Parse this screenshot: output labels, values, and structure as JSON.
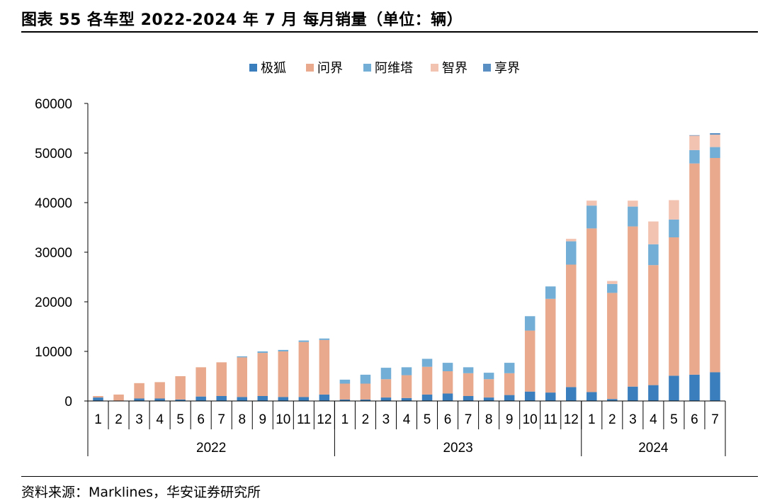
{
  "header": {
    "title": "图表 55 各车型 2022-2024 年 7 月  每月销量（单位：辆）"
  },
  "footer": {
    "source": "资料来源：Marklines，华安证券研究所"
  },
  "colors": {
    "极狐": "#3a7ebd",
    "问界": "#e8a98c",
    "阿维塔": "#72aed6",
    "智界": "#f3c3b1",
    "享界": "#5a8fc4",
    "axis": "#000000"
  },
  "chart_data": {
    "type": "bar",
    "stacked": true,
    "title": "",
    "xlabel": "",
    "ylabel": "",
    "ylim": [
      0,
      60000
    ],
    "yticks": [
      0,
      10000,
      20000,
      30000,
      40000,
      50000,
      60000
    ],
    "ytick_labels": [
      "0",
      "10000",
      "20000",
      "30000",
      "40000",
      "50000",
      "60000"
    ],
    "legend_position": "top-center",
    "grid": false,
    "categories": [
      "1",
      "2",
      "3",
      "4",
      "5",
      "6",
      "7",
      "8",
      "9",
      "10",
      "11",
      "12",
      "1",
      "2",
      "3",
      "4",
      "5",
      "6",
      "7",
      "8",
      "9",
      "10",
      "11",
      "12",
      "1",
      "2",
      "3",
      "4",
      "5",
      "6",
      "7"
    ],
    "groups": [
      {
        "label": "2022",
        "count": 12
      },
      {
        "label": "2023",
        "count": 12
      },
      {
        "label": "2024",
        "count": 7
      }
    ],
    "series": [
      {
        "name": "极狐",
        "values": [
          700,
          0,
          500,
          500,
          300,
          900,
          1000,
          800,
          1000,
          800,
          800,
          1300,
          300,
          300,
          700,
          600,
          1300,
          1500,
          1000,
          700,
          1200,
          1900,
          1700,
          2800,
          1800,
          400,
          2900,
          3200,
          5100,
          5300,
          5800
        ]
      },
      {
        "name": "问界",
        "values": [
          300,
          1300,
          3100,
          3300,
          4700,
          5900,
          6800,
          8000,
          8700,
          9200,
          11100,
          11000,
          3200,
          3200,
          3700,
          4600,
          5600,
          4500,
          4600,
          3700,
          4400,
          12300,
          18900,
          24700,
          33000,
          21400,
          32300,
          24200,
          27900,
          42600,
          43200
        ]
      },
      {
        "name": "阿维塔",
        "values": [
          0,
          0,
          0,
          0,
          0,
          0,
          0,
          200,
          300,
          300,
          300,
          300,
          800,
          1800,
          2300,
          1600,
          1600,
          1700,
          1200,
          1300,
          2100,
          2900,
          2500,
          4700,
          4600,
          1800,
          4000,
          4200,
          3600,
          2700,
          2200
        ]
      },
      {
        "name": "智界",
        "values": [
          0,
          0,
          0,
          0,
          0,
          0,
          0,
          0,
          0,
          0,
          0,
          0,
          0,
          0,
          0,
          0,
          0,
          0,
          0,
          0,
          0,
          0,
          0,
          500,
          1000,
          600,
          1200,
          4600,
          3900,
          2900,
          2500
        ]
      },
      {
        "name": "享界",
        "values": [
          0,
          0,
          0,
          0,
          0,
          0,
          0,
          0,
          0,
          0,
          0,
          0,
          0,
          0,
          0,
          0,
          0,
          0,
          0,
          0,
          0,
          0,
          0,
          0,
          0,
          0,
          0,
          0,
          0,
          100,
          300
        ]
      }
    ]
  }
}
